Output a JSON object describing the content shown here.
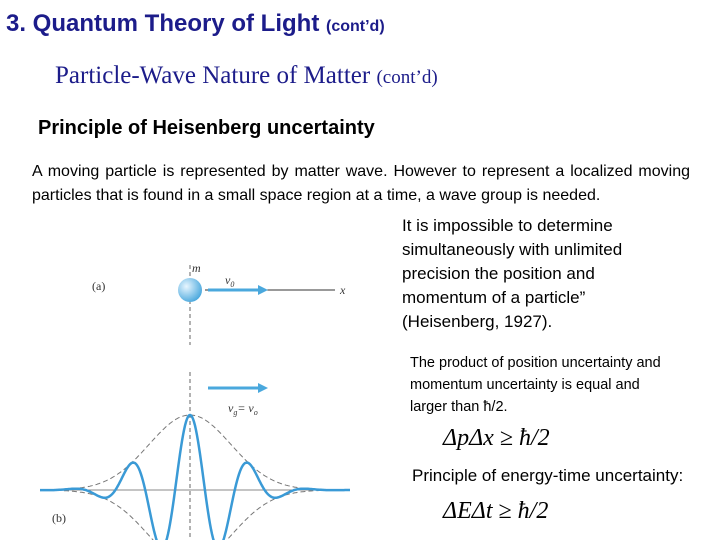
{
  "header": {
    "title": "3. Quantum Theory of Light",
    "title_suffix": "(cont’d)",
    "subtitle": "Particle-Wave Nature of Matter",
    "subtitle_suffix": "(cont’d)"
  },
  "section": {
    "heading": "Principle of Heisenberg uncertainty",
    "paragraph": "A moving particle is represented by matter wave. However to represent a localized moving particles that is found in a small space region at a time, a wave group is needed.",
    "quote_lines": [
      "It is impossible to determine",
      "simultaneously with unlimited",
      "precision the position and",
      "momentum of a particle”",
      "(Heisenberg, 1927)."
    ],
    "product_lines": [
      "The product of position uncertainty and",
      "momentum uncertainty is equal and",
      "larger than ħ/2."
    ],
    "formula_1": "ΔpΔx ≥ ħ/2",
    "energy_heading": "Principle of energy-time uncertainty:",
    "formula_2": "ΔEΔt ≥ ħ/2"
  },
  "figure": {
    "a": {
      "label": "(a)",
      "mass": "m",
      "velocity": "v",
      "velocity_sub": "0",
      "axis": "x"
    },
    "b": {
      "label": "(b)",
      "velocity": "v",
      "velocity_sub": "g",
      "equals": "= v",
      "equals_sub": "o"
    }
  }
}
